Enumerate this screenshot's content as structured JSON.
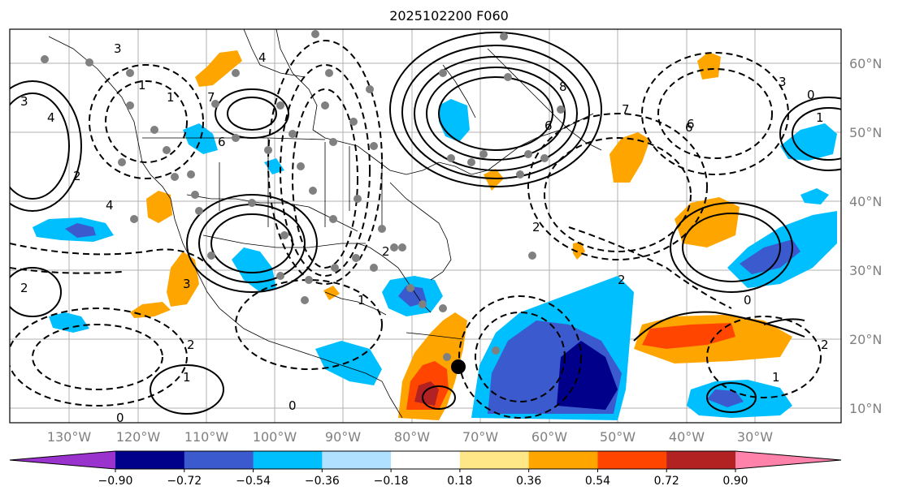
{
  "title": "2025102200 F060",
  "map": {
    "lat_labels": [
      "60°N",
      "50°N",
      "40°N",
      "30°N",
      "20°N",
      "10°N"
    ],
    "lon_labels": [
      "130°W",
      "120°W",
      "110°W",
      "100°W",
      "90°W",
      "80°W",
      "70°W",
      "60°W",
      "50°W",
      "40°W",
      "30°W"
    ],
    "contour_labels": [
      "3",
      "4",
      "1",
      "2",
      "4",
      "1",
      "4",
      "3",
      "6",
      "8",
      "7",
      "6",
      "3",
      "0",
      "1",
      "2",
      "2",
      "1",
      "7",
      "6",
      "2",
      "3",
      "2",
      "2",
      "1",
      "1",
      "0",
      "0",
      "0",
      "6",
      "2"
    ]
  },
  "colorbar": {
    "ticks": [
      "−0.90",
      "−0.72",
      "−0.54",
      "−0.36",
      "−0.18",
      "0.18",
      "0.36",
      "0.54",
      "0.72",
      "0.90"
    ],
    "colors": [
      "#9a32cd",
      "#00008b",
      "#3a5acd",
      "#00bfff",
      "#b0e2ff",
      "#ffffff",
      "#ffe787",
      "#ffa500",
      "#ff4500",
      "#b22222",
      "#ff82ab"
    ]
  }
}
